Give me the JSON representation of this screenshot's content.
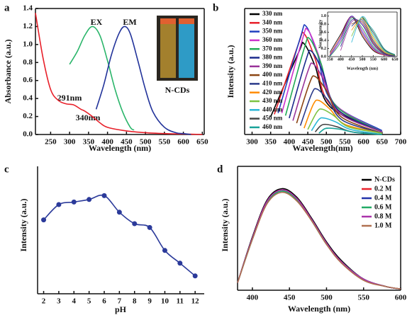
{
  "chart_data": [
    {
      "type": "line",
      "panel": "a",
      "xlabel": "Wavelength (nm)",
      "ylabel": "Absorbance (a.u.)",
      "xlim": [
        210,
        655
      ],
      "xticks": [
        250,
        300,
        350,
        400,
        450,
        500,
        550,
        600,
        650
      ],
      "ylim": [
        0,
        1.4
      ],
      "yticks": [
        {
          "value": 0,
          "label": "0.0"
        },
        0.2,
        0.4,
        0.6,
        0.8,
        {
          "value": 1,
          "label": "1.0"
        },
        1.2,
        1.4
      ],
      "annotations": [
        "EX",
        "EM",
        "291nm",
        "340nm",
        "N-CDs"
      ],
      "series": [
        {
          "color": "#e8202a",
          "x": [
            210,
            230,
            250,
            270,
            291,
            310,
            330,
            340,
            360,
            380,
            400,
            450,
            500,
            550,
            600,
            650
          ],
          "values": [
            1.35,
            0.85,
            0.5,
            0.38,
            0.34,
            0.33,
            0.28,
            0.26,
            0.2,
            0.13,
            0.08,
            0.04,
            0.02,
            0.01,
            0.005,
            0
          ]
        },
        {
          "color": "#2ab56a",
          "x": [
            300,
            320,
            340,
            360,
            380,
            400,
            420,
            440,
            460,
            470
          ],
          "values": [
            0.78,
            0.92,
            1.1,
            1.2,
            1.1,
            0.82,
            0.5,
            0.25,
            0.08,
            0.05
          ]
        },
        {
          "color": "#22339a",
          "x": [
            370,
            390,
            410,
            430,
            445,
            460,
            480,
            500,
            520,
            550,
            580,
            600,
            620
          ],
          "values": [
            0.28,
            0.55,
            0.88,
            1.12,
            1.2,
            1.12,
            0.82,
            0.5,
            0.25,
            0.08,
            0.02,
            0.01,
            0
          ]
        }
      ]
    },
    {
      "type": "line",
      "panel": "b",
      "xlabel": "Wavelength(nm)",
      "ylabel": "Intensity (a.u.)",
      "xlim": [
        280,
        700
      ],
      "xticks": [
        300,
        350,
        400,
        450,
        500,
        550,
        600,
        650,
        700
      ],
      "ylim": [
        0,
        1
      ],
      "series": [
        {
          "name": "330 nm",
          "color": "#000000",
          "x": [
            350,
            425,
            440,
            470,
            510,
            650
          ],
          "values": [
            0.14,
            0.65,
            0.72,
            0.54,
            0.22,
            0.02
          ]
        },
        {
          "name": "340 nm",
          "color": "#e8202a",
          "x": [
            360,
            425,
            440,
            470,
            510,
            650
          ],
          "values": [
            0.16,
            0.72,
            0.8,
            0.6,
            0.24,
            0.02
          ]
        },
        {
          "name": "350 nm",
          "color": "#1f3fbf",
          "x": [
            370,
            430,
            445,
            475,
            515,
            650
          ],
          "values": [
            0.17,
            0.77,
            0.86,
            0.65,
            0.26,
            0.03
          ]
        },
        {
          "name": "360 nm",
          "color": "#cc33cc",
          "x": [
            380,
            435,
            450,
            480,
            520,
            650
          ],
          "values": [
            0.17,
            0.75,
            0.83,
            0.62,
            0.25,
            0.02
          ]
        },
        {
          "name": "370 nm",
          "color": "#22aa55",
          "x": [
            390,
            440,
            455,
            485,
            525,
            650
          ],
          "values": [
            0.15,
            0.68,
            0.76,
            0.57,
            0.23,
            0.02
          ]
        },
        {
          "name": "380 nm",
          "color": "#1a2a8c",
          "x": [
            400,
            445,
            460,
            490,
            530,
            650
          ],
          "values": [
            0.13,
            0.59,
            0.66,
            0.5,
            0.2,
            0.02
          ]
        },
        {
          "name": "390 nm",
          "color": "#993399",
          "x": [
            410,
            450,
            465,
            495,
            535,
            650
          ],
          "values": [
            0.11,
            0.5,
            0.56,
            0.42,
            0.17,
            0.02
          ]
        },
        {
          "name": "400 nm",
          "color": "#8b4513",
          "x": [
            420,
            455,
            470,
            500,
            540,
            650
          ],
          "values": [
            0.09,
            0.41,
            0.46,
            0.35,
            0.14,
            0.01
          ]
        },
        {
          "name": "410 nm",
          "color": "#2a3a8a",
          "x": [
            430,
            460,
            475,
            505,
            545,
            650
          ],
          "values": [
            0.07,
            0.32,
            0.36,
            0.27,
            0.11,
            0.01
          ]
        },
        {
          "name": "420 nm",
          "color": "#ff8c00",
          "x": [
            440,
            465,
            480,
            510,
            550,
            650
          ],
          "values": [
            0.05,
            0.24,
            0.27,
            0.2,
            0.08,
            0.01
          ]
        },
        {
          "name": "430 nm",
          "color": "#7cc242",
          "x": [
            450,
            475,
            490,
            520,
            560,
            650
          ],
          "values": [
            0.04,
            0.18,
            0.2,
            0.15,
            0.06,
            0.01
          ]
        },
        {
          "name": "440 nm",
          "color": "#29b6d6",
          "x": [
            460,
            480,
            495,
            525,
            565,
            650
          ],
          "values": [
            0.03,
            0.12,
            0.13,
            0.1,
            0.04,
            0
          ]
        },
        {
          "name": "450 nm",
          "color": "#444444",
          "x": [
            470,
            485,
            500,
            530,
            570,
            650
          ],
          "values": [
            0.02,
            0.07,
            0.08,
            0.06,
            0.02,
            0
          ]
        },
        {
          "name": "460 nm",
          "color": "#1aa39a",
          "x": [
            480,
            495,
            510,
            540,
            580,
            650
          ],
          "values": [
            0.01,
            0.045,
            0.05,
            0.04,
            0.015,
            0
          ]
        }
      ]
    },
    {
      "type": "line",
      "xlabel": "Wavelength (nm)",
      "ylabel": "Norm. Intensity",
      "xlim": [
        340,
        660
      ],
      "xticks": [
        350,
        400,
        450,
        500,
        550,
        600,
        650
      ],
      "ylim": [
        0,
        1.1
      ],
      "yticks": [
        {
          "value": 0,
          "label": "0.0"
        },
        0.2,
        0.4,
        0.6,
        0.8,
        {
          "value": 1,
          "label": "1.0"
        }
      ],
      "x": [
        350,
        400,
        450,
        500,
        550,
        600,
        650
      ],
      "series": [
        {
          "color": "#000000",
          "values": [
            0.1,
            0.55,
            0.98,
            0.5,
            0.15,
            0.04,
            0.01
          ]
        },
        {
          "color": "#e8202a",
          "values": [
            0.05,
            0.5,
            1,
            0.55,
            0.17,
            0.04,
            0.01
          ]
        },
        {
          "color": "#1f3fbf",
          "values": [
            0.02,
            0.45,
            1,
            0.6,
            0.2,
            0.05,
            0.01
          ]
        },
        {
          "color": "#cc33cc",
          "values": [
            0,
            0.4,
            0.98,
            0.65,
            0.22,
            0.05,
            0.01
          ]
        },
        {
          "color": "#22aa55",
          "values": [
            0,
            0.35,
            0.95,
            0.7,
            0.25,
            0.06,
            0.01
          ]
        },
        {
          "color": "#1a2a8c",
          "values": [
            null,
            0.25,
            0.9,
            0.78,
            0.3,
            0.07,
            0.01
          ]
        },
        {
          "color": "#993399",
          "values": [
            null,
            0.15,
            0.85,
            0.82,
            0.33,
            0.08,
            0.02
          ]
        },
        {
          "color": "#8b4513",
          "values": [
            null,
            null,
            0.8,
            0.86,
            0.36,
            0.09,
            0.02
          ]
        },
        {
          "color": "#2a3a8a",
          "values": [
            null,
            null,
            0.75,
            0.9,
            0.4,
            0.1,
            0.02
          ]
        },
        {
          "color": "#ff8c00",
          "values": [
            null,
            null,
            0.65,
            0.93,
            0.45,
            0.12,
            0.03
          ]
        },
        {
          "color": "#7cc242",
          "values": [
            null,
            null,
            0.5,
            0.97,
            0.5,
            0.14,
            0.03
          ]
        },
        {
          "color": "#29b6d6",
          "values": [
            null,
            null,
            0.35,
            0.99,
            0.55,
            0.16,
            0.04
          ]
        },
        {
          "color": "#444444",
          "values": [
            null,
            null,
            null,
            0.98,
            0.6,
            0.18,
            0.04
          ]
        },
        {
          "color": "#1aa39a",
          "values": [
            null,
            null,
            null,
            0.95,
            0.65,
            0.2,
            0.05
          ]
        }
      ]
    },
    {
      "type": "line",
      "panel": "c",
      "xlabel": "pH",
      "ylabel": "Intensity (a.u.)",
      "markers": true,
      "xlim": [
        1.6,
        12.6
      ],
      "xticks": [
        2,
        3,
        4,
        5,
        6,
        7,
        8,
        9,
        10,
        11,
        12
      ],
      "ylim": [
        0,
        1
      ],
      "x": [
        2,
        3,
        4,
        5,
        6,
        7,
        8,
        9,
        10,
        11,
        12
      ],
      "series": [
        {
          "color": "#2b3a9a",
          "values": [
            0.58,
            0.7,
            0.72,
            0.74,
            0.77,
            0.64,
            0.55,
            0.52,
            0.34,
            0.24,
            0.14
          ]
        }
      ]
    },
    {
      "type": "line",
      "panel": "d",
      "xlabel": "Wavelength (nm)",
      "ylabel": "Intensity (a.u.)",
      "xlim": [
        380,
        600
      ],
      "xticks": [
        400,
        450,
        500,
        550,
        600
      ],
      "ylim": [
        0,
        1
      ],
      "x": [
        380,
        400,
        420,
        440,
        460,
        480,
        500,
        520,
        550,
        580,
        600
      ],
      "series": [
        {
          "name": "N-CDs",
          "color": "#000000",
          "values": [
            0.06,
            0.43,
            0.73,
            0.82,
            0.75,
            0.58,
            0.39,
            0.24,
            0.09,
            0.03,
            0.01
          ]
        },
        {
          "name": "0.2 M",
          "color": "#e8202a",
          "values": [
            0.06,
            0.42,
            0.72,
            0.81,
            0.74,
            0.57,
            0.38,
            0.23,
            0.09,
            0.03,
            0.01
          ]
        },
        {
          "name": "0.4 M",
          "color": "#2233aa",
          "values": [
            0.06,
            0.42,
            0.71,
            0.8,
            0.73,
            0.57,
            0.38,
            0.23,
            0.09,
            0.03,
            0.01
          ]
        },
        {
          "name": "0.6 M",
          "color": "#22aa66",
          "values": [
            0.06,
            0.41,
            0.71,
            0.8,
            0.73,
            0.56,
            0.37,
            0.23,
            0.09,
            0.03,
            0.01
          ]
        },
        {
          "name": "0.8 M",
          "color": "#aa33aa",
          "values": [
            0.06,
            0.42,
            0.72,
            0.81,
            0.74,
            0.57,
            0.38,
            0.23,
            0.09,
            0.03,
            0.01
          ]
        },
        {
          "name": "1.0 M",
          "color": "#b07050",
          "values": [
            0.06,
            0.41,
            0.7,
            0.79,
            0.72,
            0.56,
            0.37,
            0.22,
            0.08,
            0.03,
            0.01
          ]
        }
      ]
    }
  ]
}
